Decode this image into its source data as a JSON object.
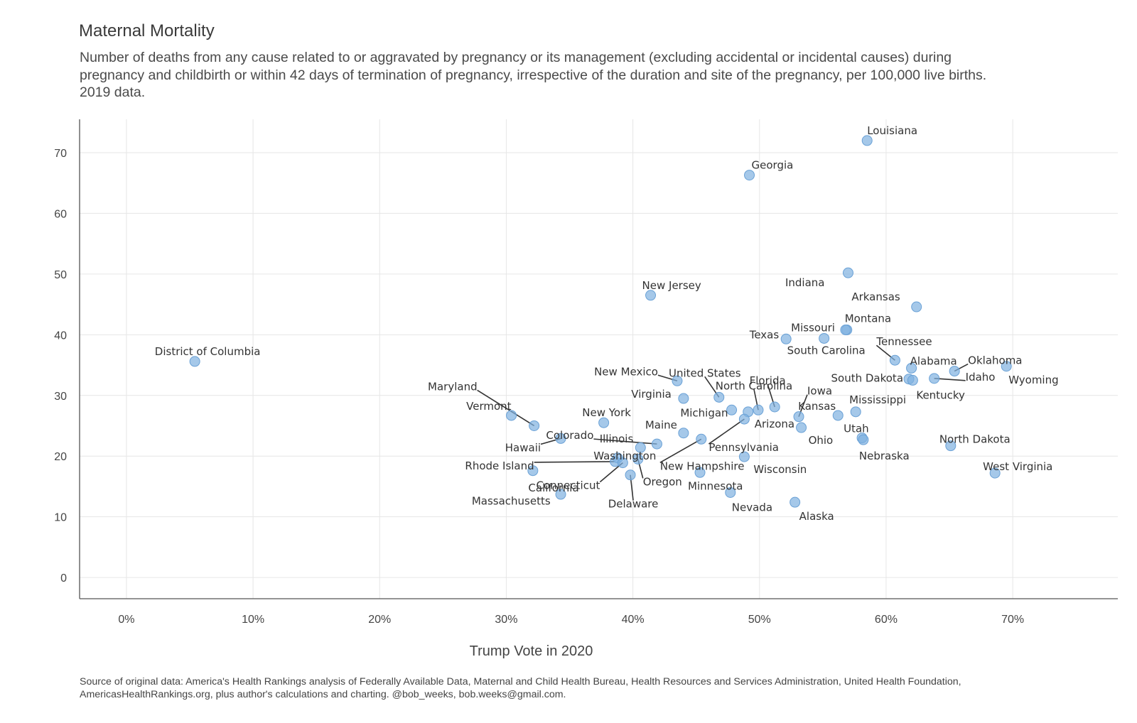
{
  "title": "Maternal Mortality",
  "subtitle": "Number of deaths from any cause related to or aggravated by pregnancy or its management (excluding accidental or incidental causes) during pregnancy and childbirth or within 42 days of termination of pregnancy, irrespective of the duration and site of the pregnancy, per 100,000 live births. 2019 data.",
  "caption": "Source of original data: America's Health Rankings analysis of Federally Available Data, Maternal and Child Health Bureau, Health Resources and Services Administration, United Health Foundation, AmericasHealthRankings.org, plus author's calculations and charting. @bob_weeks, bob.weeks@gmail.com.",
  "chart_data": {
    "type": "scatter",
    "xlabel": "Trump Vote in 2020",
    "ylabel": "",
    "x_unit": "%",
    "xlim": [
      -3.7,
      78.3
    ],
    "ylim": [
      -3.5,
      75.5
    ],
    "x_ticks": [
      0,
      10,
      20,
      30,
      40,
      50,
      60,
      70
    ],
    "x_tick_labels": [
      "0%",
      "10%",
      "20%",
      "30%",
      "40%",
      "50%",
      "60%",
      "70%"
    ],
    "y_ticks": [
      0,
      10,
      20,
      30,
      40,
      50,
      60,
      70
    ],
    "y_tick_labels": [
      "0",
      "10",
      "20",
      "30",
      "40",
      "50",
      "60",
      "70"
    ],
    "grid": true,
    "legend": "none",
    "point_color": "#7fb1e0",
    "points": [
      {
        "label": "Louisiana",
        "x": 58.5,
        "y": 72.0
      },
      {
        "label": "Georgia",
        "x": 49.2,
        "y": 66.3
      },
      {
        "label": "Indiana",
        "x": 57.0,
        "y": 50.2
      },
      {
        "label": "New Jersey",
        "x": 41.4,
        "y": 46.5
      },
      {
        "label": "Arkansas",
        "x": 62.4,
        "y": 44.6
      },
      {
        "label": "Montana",
        "x": 56.9,
        "y": 40.8
      },
      {
        "label": "Missouri",
        "x": 56.8,
        "y": 40.8
      },
      {
        "label": "Texas",
        "x": 52.1,
        "y": 39.3
      },
      {
        "label": "South Carolina",
        "x": 55.1,
        "y": 39.4
      },
      {
        "label": "District of Columbia",
        "x": 5.4,
        "y": 35.6
      },
      {
        "label": "Tennessee",
        "x": 60.7,
        "y": 35.8
      },
      {
        "label": "Wyoming",
        "x": 69.5,
        "y": 34.8
      },
      {
        "label": "Alabama",
        "x": 62.0,
        "y": 34.5
      },
      {
        "label": "Oklahoma",
        "x": 65.4,
        "y": 34.0
      },
      {
        "label": "Idaho",
        "x": 63.8,
        "y": 32.8
      },
      {
        "label": "South Dakota",
        "x": 61.8,
        "y": 32.7
      },
      {
        "label": "Kentucky",
        "x": 62.1,
        "y": 32.5
      },
      {
        "label": "New Mexico",
        "x": 43.5,
        "y": 32.4
      },
      {
        "label": "United States",
        "x": 46.8,
        "y": 29.7
      },
      {
        "label": "Virginia",
        "x": 44.0,
        "y": 29.5
      },
      {
        "label": "Florida",
        "x": 51.2,
        "y": 28.1
      },
      {
        "label": "North Carolina",
        "x": 49.9,
        "y": 27.6
      },
      {
        "label": "Michigan",
        "x": 47.8,
        "y": 27.6
      },
      {
        "label": "Arizona",
        "x": 49.1,
        "y": 27.3
      },
      {
        "label": "Mississippi",
        "x": 57.6,
        "y": 27.3
      },
      {
        "label": "Vermont",
        "x": 30.4,
        "y": 26.7
      },
      {
        "label": "Kansas",
        "x": 56.2,
        "y": 26.7
      },
      {
        "label": "Iowa",
        "x": 53.1,
        "y": 26.5
      },
      {
        "label": "Pennsylvania",
        "x": 48.8,
        "y": 26.1
      },
      {
        "label": "New York",
        "x": 37.7,
        "y": 25.5
      },
      {
        "label": "Maryland",
        "x": 32.2,
        "y": 25.0
      },
      {
        "label": "Ohio",
        "x": 53.3,
        "y": 24.7
      },
      {
        "label": "Maine",
        "x": 44.0,
        "y": 23.8
      },
      {
        "label": "Utah",
        "x": 58.1,
        "y": 23.0
      },
      {
        "label": "Hawaii",
        "x": 34.3,
        "y": 22.9
      },
      {
        "label": "New Hampshire",
        "x": 45.4,
        "y": 22.8
      },
      {
        "label": "Nebraska",
        "x": 58.2,
        "y": 22.7
      },
      {
        "label": "Colorado",
        "x": 41.9,
        "y": 22.0
      },
      {
        "label": "North Dakota",
        "x": 65.1,
        "y": 21.7
      },
      {
        "label": "Illinois",
        "x": 40.6,
        "y": 21.4
      },
      {
        "label": "Wisconsin",
        "x": 48.8,
        "y": 19.9
      },
      {
        "label": "Washington",
        "x": 38.8,
        "y": 19.7
      },
      {
        "label": "Oregon",
        "x": 40.4,
        "y": 19.5
      },
      {
        "label": "Rhode Island",
        "x": 38.6,
        "y": 19.1
      },
      {
        "label": "Connecticut",
        "x": 39.2,
        "y": 18.9
      },
      {
        "label": "Massachusetts",
        "x": 32.1,
        "y": 17.6
      },
      {
        "label": "Minnesota",
        "x": 45.3,
        "y": 17.3
      },
      {
        "label": "West Virginia",
        "x": 68.6,
        "y": 17.2
      },
      {
        "label": "Delaware",
        "x": 39.8,
        "y": 16.9
      },
      {
        "label": "Nevada",
        "x": 47.7,
        "y": 14.0
      },
      {
        "label": "California",
        "x": 34.3,
        "y": 13.7
      },
      {
        "label": "Alaska",
        "x": 52.8,
        "y": 12.4
      }
    ]
  }
}
